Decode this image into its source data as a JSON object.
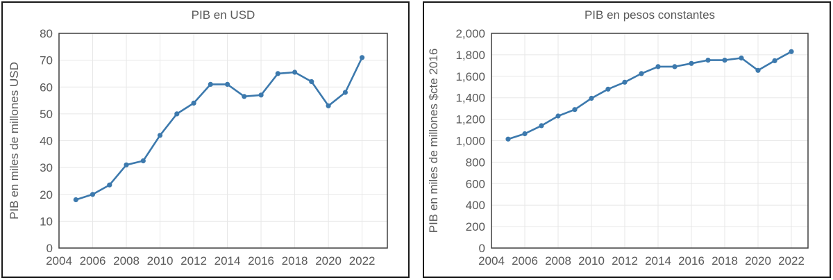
{
  "page": {
    "background": "#ffffff",
    "description": "Two side-by-side line charts of GDP (PIB), 2005-2022"
  },
  "colors": {
    "line": "#3c79ad",
    "marker": "#3c79ad",
    "text": "#595959",
    "grid": "#e7e7e7",
    "spine": "#3f3f3f",
    "panel_border": "#191919"
  },
  "chart_data": [
    {
      "type": "line",
      "title": "PIB en USD",
      "xlabel": "",
      "ylabel": "PIB en miles de millones USD",
      "x": [
        2005,
        2006,
        2007,
        2008,
        2009,
        2010,
        2011,
        2012,
        2013,
        2014,
        2015,
        2016,
        2017,
        2018,
        2019,
        2020,
        2021,
        2022
      ],
      "values": [
        18,
        20,
        23.5,
        31,
        32.5,
        42,
        50,
        54,
        61,
        61,
        56.5,
        57,
        65,
        65.5,
        62,
        53,
        58,
        71
      ],
      "xlim": [
        2004,
        2023.5
      ],
      "ylim": [
        0,
        80
      ],
      "xticks": [
        2004,
        2006,
        2008,
        2010,
        2012,
        2014,
        2016,
        2018,
        2020,
        2022
      ],
      "xtick_labels": [
        "2004",
        "2006",
        "2008",
        "2010",
        "2012",
        "2014",
        "2016",
        "2018",
        "2020",
        "2022"
      ],
      "yticks": [
        0,
        10,
        20,
        30,
        40,
        50,
        60,
        70,
        80
      ],
      "ytick_labels": [
        "0",
        "10",
        "20",
        "30",
        "40",
        "50",
        "60",
        "70",
        "80"
      ],
      "grid": true,
      "legend": "none",
      "marker": "circle"
    },
    {
      "type": "line",
      "title": "PIB en pesos constantes",
      "xlabel": "",
      "ylabel": "PIB en miles de millones $cte 2016",
      "x": [
        2005,
        2006,
        2007,
        2008,
        2009,
        2010,
        2011,
        2012,
        2013,
        2014,
        2015,
        2016,
        2017,
        2018,
        2019,
        2020,
        2021,
        2022
      ],
      "values": [
        1015,
        1065,
        1140,
        1230,
        1290,
        1395,
        1480,
        1545,
        1625,
        1690,
        1690,
        1720,
        1750,
        1750,
        1770,
        1655,
        1745,
        1830
      ],
      "xlim": [
        2004,
        2023
      ],
      "ylim": [
        0,
        2000
      ],
      "xticks": [
        2004,
        2006,
        2008,
        2010,
        2012,
        2014,
        2016,
        2018,
        2020,
        2022
      ],
      "xtick_labels": [
        "2004",
        "2006",
        "2008",
        "2010",
        "2012",
        "2014",
        "2016",
        "2018",
        "2020",
        "2022"
      ],
      "yticks": [
        0,
        200,
        400,
        600,
        800,
        1000,
        1200,
        1400,
        1600,
        1800,
        2000
      ],
      "ytick_labels": [
        "0",
        "200",
        "400",
        "600",
        "800",
        "1,000",
        "1,200",
        "1,400",
        "1,600",
        "1,800",
        "2,000"
      ],
      "grid": true,
      "legend": "none",
      "marker": "circle"
    }
  ]
}
